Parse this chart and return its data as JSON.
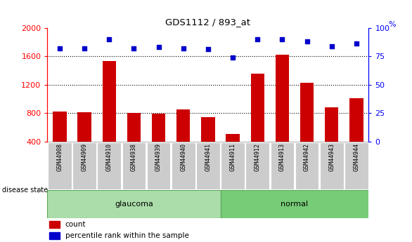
{
  "title": "GDS1112 / 893_at",
  "samples": [
    "GSM44908",
    "GSM44909",
    "GSM44910",
    "GSM44938",
    "GSM44939",
    "GSM44940",
    "GSM44941",
    "GSM44911",
    "GSM44912",
    "GSM44913",
    "GSM44942",
    "GSM44943",
    "GSM44944"
  ],
  "counts": [
    820,
    810,
    1530,
    800,
    795,
    855,
    740,
    510,
    1360,
    1620,
    1230,
    880,
    1010
  ],
  "percentiles": [
    82,
    82,
    90,
    82,
    83,
    82,
    81,
    74,
    90,
    90,
    88,
    84,
    86
  ],
  "groups": [
    "glaucoma",
    "glaucoma",
    "glaucoma",
    "glaucoma",
    "glaucoma",
    "glaucoma",
    "glaucoma",
    "normal",
    "normal",
    "normal",
    "normal",
    "normal",
    "normal"
  ],
  "glaucoma_color": "#aaddaa",
  "normal_color": "#77cc77",
  "bar_color": "#CC0000",
  "dot_color": "#0000CC",
  "ylim_left": [
    400,
    2000
  ],
  "ylim_right": [
    0,
    100
  ],
  "yticks_left": [
    400,
    800,
    1200,
    1600,
    2000
  ],
  "yticks_right": [
    0,
    25,
    50,
    75,
    100
  ],
  "grid_values": [
    800,
    1200,
    1600
  ],
  "background_color": "#ffffff"
}
